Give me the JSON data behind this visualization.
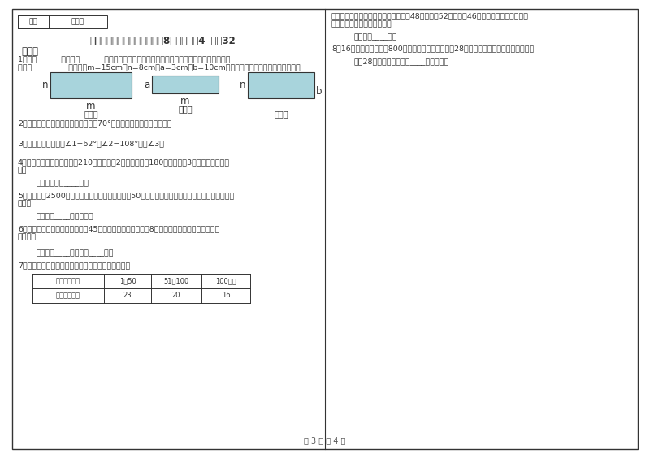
{
  "bg_color": "#ffffff",
  "border_color": "#333333",
  "text_color": "#333333",
  "light_blue": "#a8d4dc",
  "score_label": "得分",
  "reviewer_label": "评卷人",
  "title_line1": "六、应用知识，解决问题（共8小题，每题4分，共32",
  "title_line2": "分）。",
  "q1_line1": "1．第（          ）个和（          ）个长方形可以拼成一个新的大长方形，拼成后的面积用字母",
  "q1_line2": "示是（               ）。如果m=15cm，n=8cm，a=3cm，b=10cm，那拼成后的面积是多少平方厘米？",
  "rect1_n": "n",
  "rect1_m": "m",
  "rect1_num": "（一）",
  "rect2_a": "a",
  "rect2_m": "m",
  "rect2_num": "（二）",
  "rect3_n": "n",
  "rect3_b": "b",
  "rect3_num": "（三）",
  "q2": "2．已知一个等腰三角形的一个顶角是70°，它的每一个底角是多少度？",
  "q3": "3．在三角形中，已知∠1=62°，∠2=108°，求∠3。",
  "q4_line1": "4．同学们去植树。五年级有210人，每人栽2棵，六年级有180人，每人栽3棵。一共植树多少",
  "q4_line2": "棵？",
  "q4_ans": "答：一共植树____棵。",
  "q5_line1": "5．在一条长2500米的公路两侧架设电线杆，每隔50米架设一根，若公路两头不架，共需多少根电",
  "q5_line2": "线杆？",
  "q5_ans": "答：共需____根电线杆。",
  "q6_line1": "6．小红和妈妈的年龄加在一起是45岁，妈妈的年龄是小红的8倍，妈妈和小红各多少岁？（用",
  "q6_line2": "方程解）",
  "q6_ans": "答：妈妈____岁，小红____岁。",
  "q7": "7．家一起去游玩，兴庆公园的游园票价规定如下表：",
  "table_headers": [
    "购票人数／人",
    "1～50",
    "51～100",
    "100以上"
  ],
  "table_row": [
    "每人票价／人",
    "23",
    "20",
    "16"
  ],
  "right_q7_line1": "红星小学四年级学生去公园游玩，一班48人，二班52人，三班46人，为了节约费用，三个",
  "right_q7_line2": "班合起来购票，共需多少元？",
  "right_q7_ans": "答：共需____元。",
  "right_q8": "8．16箱蜜蜂一年可以酿800千克蜂蜜。照这样计算，28箱蜜蜂一年可以酿多少千克蜂蜜？",
  "right_q8_ans": "答：28箱蜜蜂一年可以酿____千克蜂蜜。",
  "page_footer": "第 3 页 共 4 页"
}
